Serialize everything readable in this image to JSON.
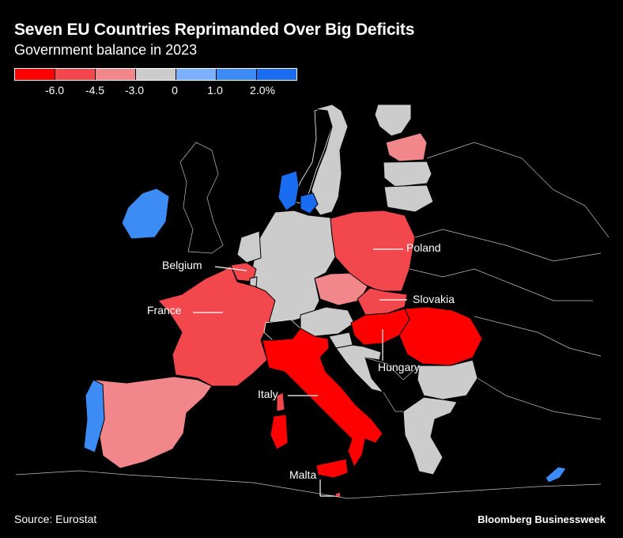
{
  "title": "Seven EU Countries Reprimanded Over Big Deficits",
  "subtitle": "Government balance in 2023",
  "legend": {
    "colors": [
      "#ff0000",
      "#f2484d",
      "#f2878b",
      "#cccccc",
      "#7ab0ff",
      "#3d8cf5",
      "#1a6cf0"
    ],
    "ticks": [
      "-6.0",
      "-4.5",
      "-3.0",
      "0",
      "1.0",
      "2.0%"
    ]
  },
  "labels": {
    "belgium": "Belgium",
    "france": "France",
    "italy": "Italy",
    "malta": "Malta",
    "poland": "Poland",
    "slovakia": "Slovakia",
    "hungary": "Hungary"
  },
  "source": "Source: Eurostat",
  "brand": "Bloomberg Businessweek"
}
